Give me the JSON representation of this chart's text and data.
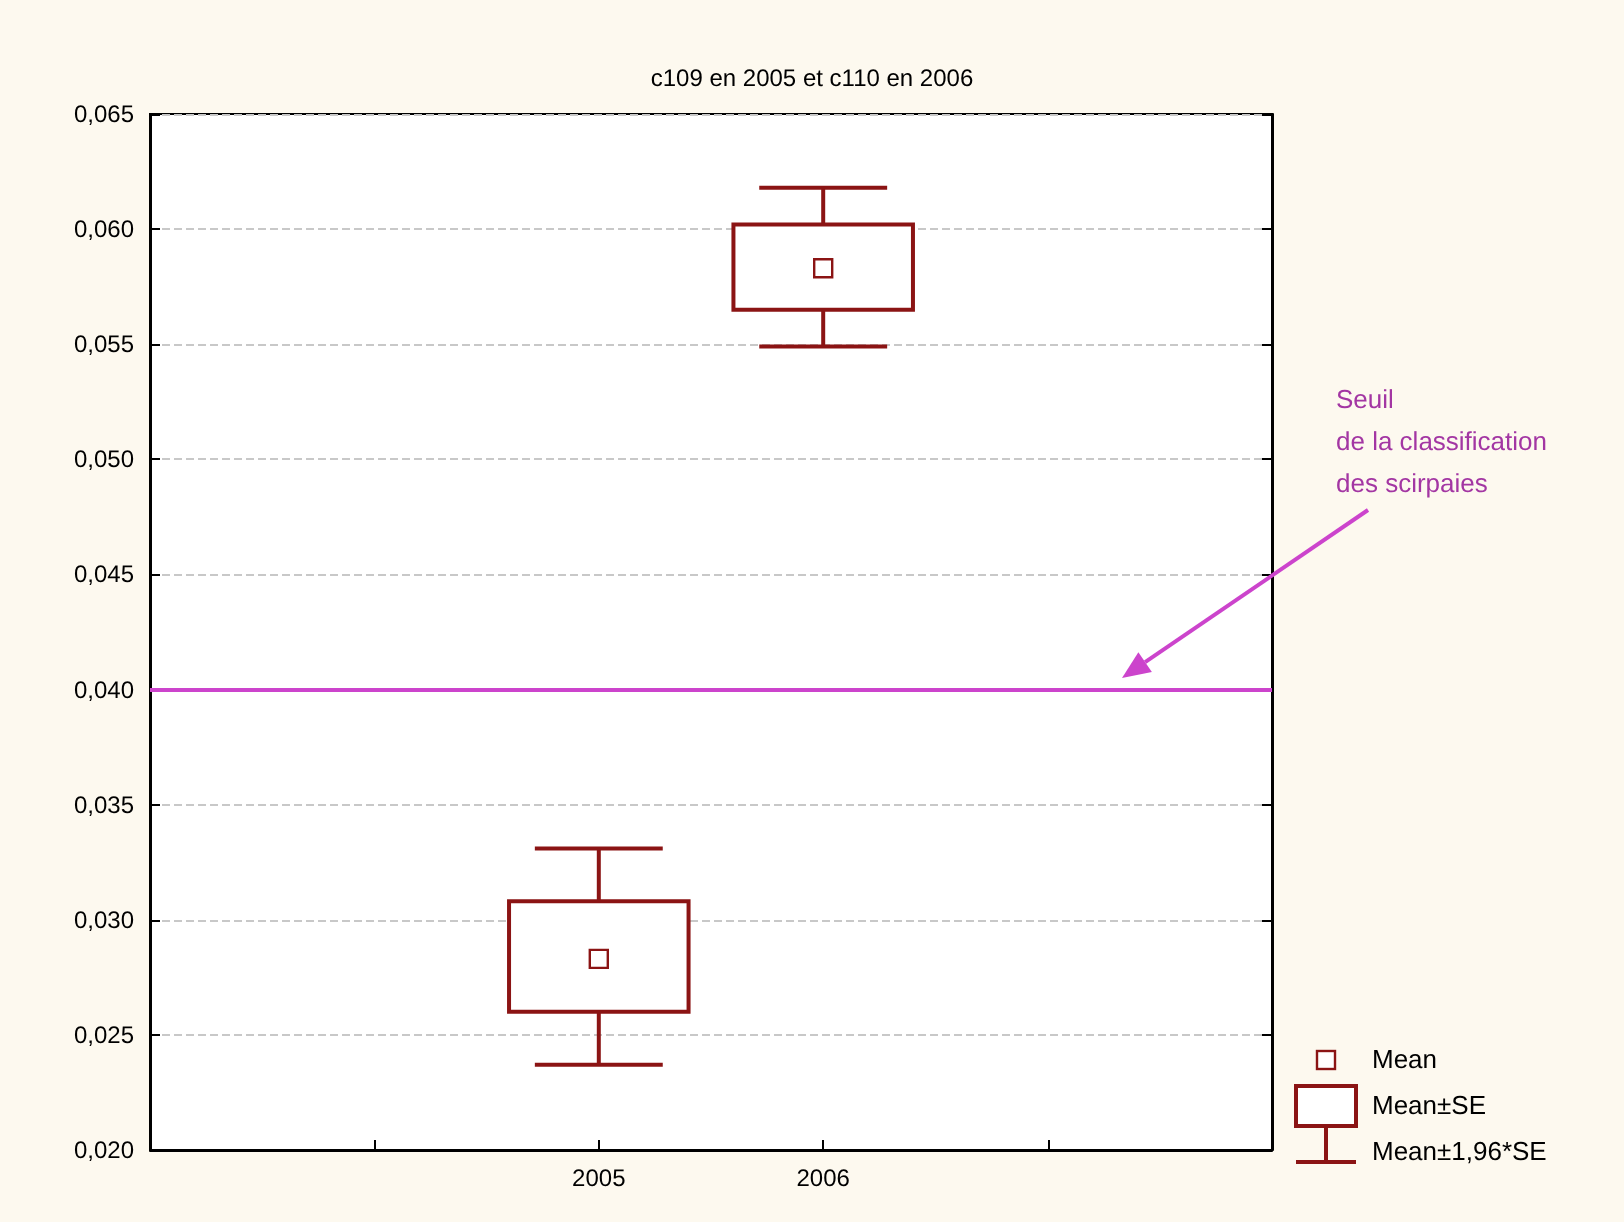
{
  "chart_data": {
    "type": "box",
    "title": "c109 en 2005 et c110 en 2006",
    "categories": [
      null,
      null,
      "2005",
      "2006",
      null,
      null
    ],
    "color": "#8b1414",
    "boxes": [
      null,
      null,
      {
        "low": 0.0237,
        "q1": 0.026,
        "median": 0.0283,
        "q3": 0.0308,
        "high": 0.0331
      },
      {
        "low": 0.0549,
        "q1": 0.0565,
        "median": 0.0583,
        "q3": 0.0602,
        "high": 0.0618
      },
      null,
      null
    ],
    "ylim": [
      0.02,
      0.065
    ],
    "yticks": [
      {
        "value": 0.02,
        "label": "0,020"
      },
      {
        "value": 0.025,
        "label": "0,025"
      },
      {
        "value": 0.03,
        "label": "0,030"
      },
      {
        "value": 0.035,
        "label": "0,035"
      },
      {
        "value": 0.04,
        "label": "0,040"
      },
      {
        "value": 0.045,
        "label": "0,045"
      },
      {
        "value": 0.05,
        "label": "0,050"
      },
      {
        "value": 0.055,
        "label": "0,055"
      },
      {
        "value": 0.06,
        "label": "0,060"
      },
      {
        "value": 0.065,
        "label": "0,065"
      }
    ],
    "grid": "y",
    "ref_lines": [
      {
        "axis": "y",
        "value": 0.04,
        "label": "Seuil\nde la classification\ndes scirpaies",
        "color": "#cc44cc"
      }
    ],
    "annotations": [
      "Mean",
      "Mean±SE",
      "Mean±1,96*SE"
    ]
  }
}
